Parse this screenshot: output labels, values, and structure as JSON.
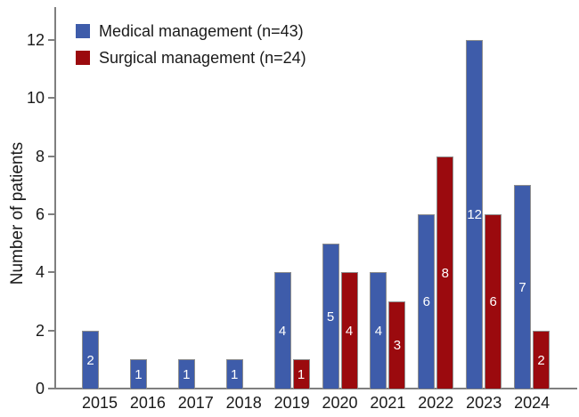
{
  "figure": {
    "ylabel": "Number of patients",
    "background": "#ffffff",
    "axis_color": "#7f7f7f",
    "bar_border_color": "#8e8e8e",
    "bar_label_color": "#ffffff"
  },
  "chart_data": {
    "type": "bar",
    "title": "",
    "xlabel": "",
    "ylabel": "Number of patients",
    "categories": [
      "2015",
      "2016",
      "2017",
      "2018",
      "2019",
      "2020",
      "2021",
      "2022",
      "2023",
      "2024"
    ],
    "series": [
      {
        "name": "Medical management (n=43)",
        "color": "#3e5caa",
        "values": [
          2,
          1,
          1,
          1,
          4,
          5,
          4,
          6,
          12,
          7
        ]
      },
      {
        "name": "Surgical management (n=24)",
        "color": "#9b0a0e",
        "values": [
          0,
          0,
          0,
          0,
          1,
          4,
          3,
          8,
          6,
          2
        ]
      }
    ],
    "yticks": [
      0,
      2,
      4,
      6,
      8,
      10,
      12
    ],
    "ylim": [
      0,
      13
    ],
    "bar_value_labels": true,
    "grid": false,
    "legend_position": "upper-left"
  }
}
